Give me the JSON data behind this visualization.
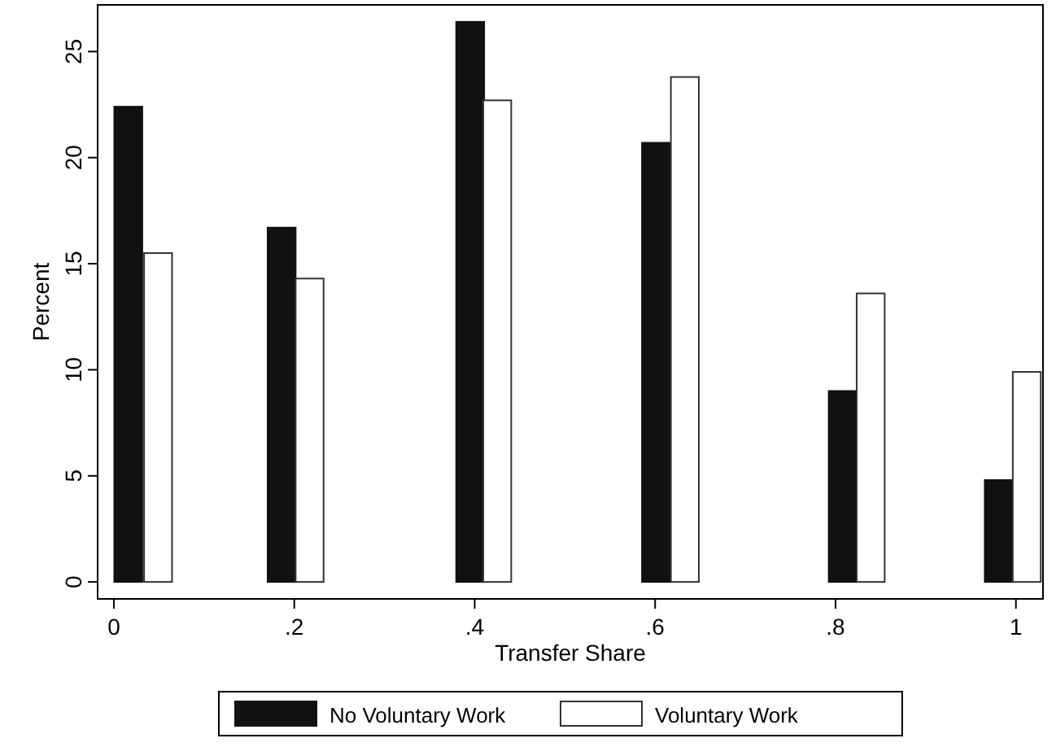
{
  "chart_data": {
    "type": "bar",
    "xlabel": "Transfer Share",
    "ylabel": "Percent",
    "xlim": [
      -0.018,
      1.03
    ],
    "xticks": [
      0,
      {
        "value": 0.2,
        "label": ".2"
      },
      {
        "value": 0.4,
        "label": ".4"
      },
      {
        "value": 0.6,
        "label": ".6"
      },
      {
        "value": 0.8,
        "label": ".8"
      },
      1
    ],
    "ylim": [
      -0.8,
      27.2
    ],
    "yticks": [
      0,
      5,
      10,
      15,
      20,
      25
    ],
    "grid": false,
    "legend": "bottom",
    "series": [
      {
        "name": "No Voluntary Work",
        "color": "#111111",
        "x": [
          0.016,
          0.186,
          0.395,
          0.601,
          0.808,
          0.981
        ],
        "values": [
          22.4,
          16.7,
          26.4,
          20.7,
          9.0,
          4.8
        ]
      },
      {
        "name": "Voluntary Work",
        "color": "#ffffff",
        "x": [
          0.049,
          0.217,
          0.425,
          0.633,
          0.839,
          1.012
        ],
        "values": [
          15.5,
          14.3,
          22.7,
          23.8,
          13.6,
          9.9
        ]
      }
    ]
  }
}
